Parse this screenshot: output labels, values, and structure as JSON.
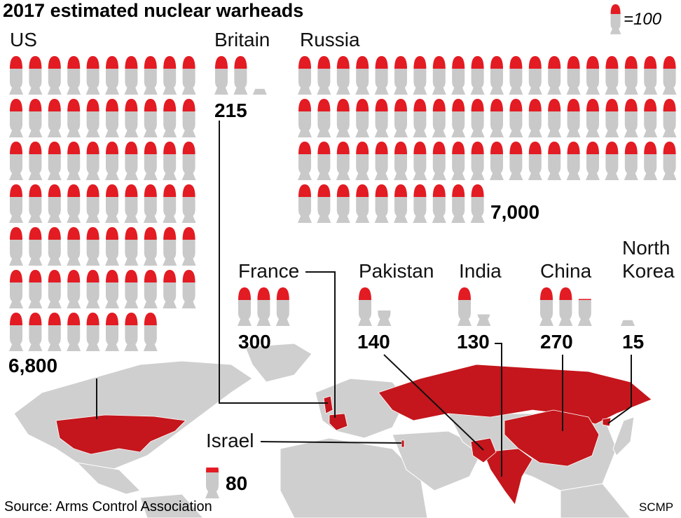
{
  "chart_data": {
    "type": "pictogram",
    "title": "2017 estimated nuclear warheads",
    "icon_value": {
      "value": 100,
      "label": "=100"
    },
    "categories": [
      "US",
      "Britain",
      "Russia",
      "France",
      "Pakistan",
      "India",
      "China",
      "North Korea",
      "Israel"
    ],
    "values": [
      6800,
      215,
      7000,
      300,
      140,
      130,
      270,
      15,
      80
    ],
    "value_labels": [
      "6,800",
      "215",
      "7,000",
      "300",
      "140",
      "130",
      "270",
      "15",
      "80"
    ],
    "color": "#e31b23",
    "body_color": "#c9c9c9",
    "source": "Source: Arms Control Association",
    "credit": "SCMP"
  }
}
